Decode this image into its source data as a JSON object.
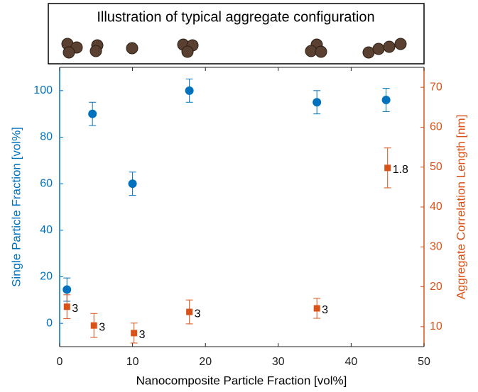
{
  "chart_data": {
    "type": "scatter",
    "illustration_title": "Illustration of typical aggregate configuration",
    "xlabel": "Nanocomposite Particle Fraction [vol%]",
    "ylabel": "Single Particle Fraction [vol%]",
    "y2label": "Aggregate Correlation Length [nm]",
    "xlim": [
      0,
      50
    ],
    "xticks": [
      0,
      10,
      20,
      30,
      40,
      50
    ],
    "ylim": [
      -10,
      110
    ],
    "yticks": [
      0,
      20,
      40,
      60,
      80,
      100
    ],
    "y2lim": [
      5,
      75
    ],
    "y2ticks": [
      10,
      20,
      30,
      40,
      50,
      60,
      70
    ],
    "series": [
      {
        "color": "#0072bd",
        "marker": "circle",
        "x": [
          1,
          4.5,
          10,
          17.8,
          35.3,
          44.8
        ],
        "values": [
          14.5,
          90,
          60,
          100,
          95,
          96
        ],
        "errors": [
          5,
          5,
          5,
          5,
          5,
          5
        ]
      },
      {
        "color": "#d95319",
        "marker": "square",
        "axis": "y2",
        "x": [
          1,
          4.7,
          10.2,
          17.8,
          35.3,
          45
        ],
        "values": [
          15,
          10.3,
          8.4,
          13.7,
          14.6,
          49.8
        ],
        "errors": [
          3,
          3,
          2.5,
          3,
          2.5,
          5
        ],
        "point_labels": [
          "3",
          "3",
          "3",
          "3",
          "3",
          "1.8"
        ]
      }
    ]
  }
}
